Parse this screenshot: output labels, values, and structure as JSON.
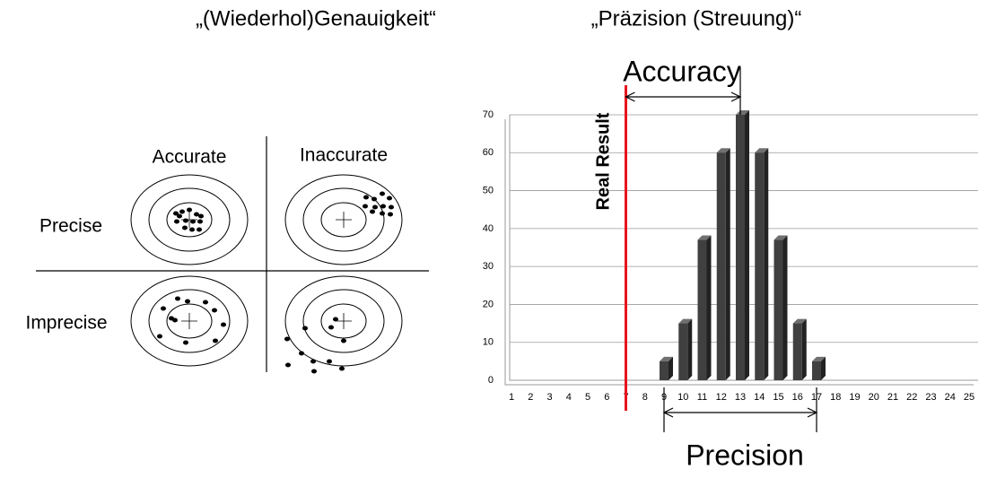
{
  "headings": [
    "„(Wiederhol)Genauigkeit“",
    "„Präzision (Streuung)“"
  ],
  "diagram": {
    "columns": [
      "Accurate",
      "Inaccurate"
    ],
    "rows": [
      "Precise",
      "Imprecise"
    ]
  },
  "chart_data": {
    "type": "bar",
    "categories": [
      "1",
      "2",
      "3",
      "4",
      "5",
      "6",
      "7",
      "8",
      "9",
      "10",
      "11",
      "12",
      "13",
      "14",
      "15",
      "16",
      "17",
      "18",
      "19",
      "20",
      "21",
      "22",
      "23",
      "24",
      "25"
    ],
    "values": [
      0,
      0,
      0,
      0,
      0,
      0,
      0,
      0,
      5,
      15,
      37,
      60,
      70,
      60,
      37,
      15,
      5,
      0,
      0,
      0,
      0,
      0,
      0,
      0,
      0
    ],
    "color": "#404040",
    "ylim": [
      0,
      70
    ],
    "yticks": [
      0,
      10,
      20,
      30,
      40,
      50,
      60,
      70
    ],
    "grid": true,
    "annotations": {
      "accuracy": "Accuracy",
      "precision": "Precision",
      "real_result": "Real Result"
    },
    "real_result_color": "#e8141c"
  }
}
